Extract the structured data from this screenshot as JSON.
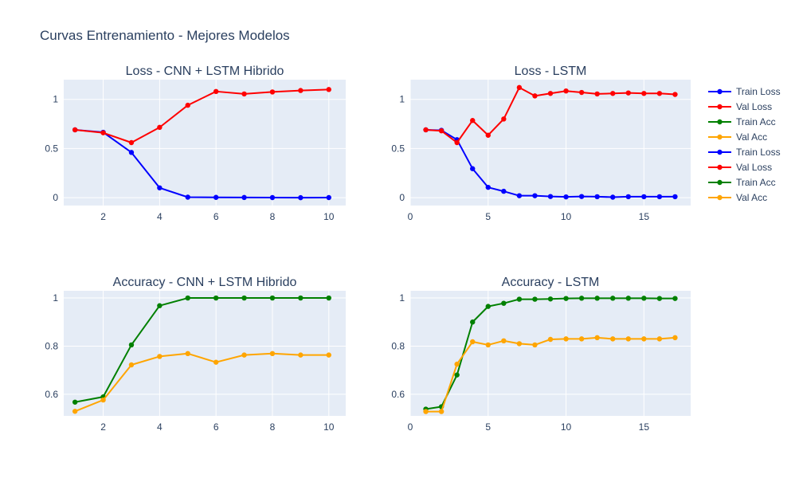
{
  "title": "Curvas Entrenamiento - Mejores Modelos",
  "colors": {
    "plot_bg": "#e5ecf6",
    "text": "#2a3f5f",
    "train_loss": "#0000ff",
    "val_loss": "#ff0000",
    "train_acc": "#008000",
    "val_acc": "#ffa500"
  },
  "legend": {
    "placement": "right",
    "entries": [
      {
        "label": "Train Loss",
        "color": "#0000ff"
      },
      {
        "label": "Val Loss",
        "color": "#ff0000"
      },
      {
        "label": "Train Acc",
        "color": "#008000"
      },
      {
        "label": "Val Acc",
        "color": "#ffa500"
      },
      {
        "label": "Train Loss",
        "color": "#0000ff"
      },
      {
        "label": "Val Loss",
        "color": "#ff0000"
      },
      {
        "label": "Train Acc",
        "color": "#008000"
      },
      {
        "label": "Val Acc",
        "color": "#ffa500"
      }
    ]
  },
  "chart_data": [
    {
      "type": "line",
      "title": "Loss - CNN + LSTM Hibrido",
      "xlim": [
        0.6,
        10.6
      ],
      "ylim": [
        -0.08,
        1.2
      ],
      "xticks": [
        2,
        4,
        6,
        8,
        10
      ],
      "yticks": [
        0,
        0.5,
        1
      ],
      "grid": true,
      "series": [
        {
          "name": "Train Loss",
          "color": "#0000ff",
          "x": [
            1,
            2,
            3,
            4,
            5,
            6,
            7,
            8,
            9,
            10
          ],
          "y": [
            0.69,
            0.665,
            0.46,
            0.1,
            0.005,
            0.003,
            0.002,
            0.001,
            0.0,
            0.001
          ]
        },
        {
          "name": "Val Loss",
          "color": "#ff0000",
          "x": [
            1,
            2,
            3,
            4,
            5,
            6,
            7,
            8,
            9,
            10
          ],
          "y": [
            0.69,
            0.66,
            0.56,
            0.715,
            0.94,
            1.08,
            1.055,
            1.075,
            1.09,
            1.1
          ]
        }
      ]
    },
    {
      "type": "line",
      "title": "Loss - LSTM",
      "xlim": [
        0,
        18
      ],
      "ylim": [
        -0.08,
        1.2
      ],
      "xticks": [
        0,
        5,
        10,
        15
      ],
      "yticks": [
        0,
        0.5,
        1
      ],
      "grid": true,
      "series": [
        {
          "name": "Train Loss",
          "color": "#0000ff",
          "x": [
            1,
            2,
            3,
            4,
            5,
            6,
            7,
            8,
            9,
            10,
            11,
            12,
            13,
            14,
            15,
            16,
            17
          ],
          "y": [
            0.69,
            0.685,
            0.59,
            0.295,
            0.105,
            0.065,
            0.02,
            0.02,
            0.012,
            0.008,
            0.012,
            0.01,
            0.005,
            0.01,
            0.01,
            0.01,
            0.01
          ]
        },
        {
          "name": "Val Loss",
          "color": "#ff0000",
          "x": [
            1,
            2,
            3,
            4,
            5,
            6,
            7,
            8,
            9,
            10,
            11,
            12,
            13,
            14,
            15,
            16,
            17
          ],
          "y": [
            0.69,
            0.68,
            0.56,
            0.785,
            0.635,
            0.8,
            1.12,
            1.035,
            1.06,
            1.085,
            1.07,
            1.055,
            1.06,
            1.065,
            1.06,
            1.06,
            1.05
          ]
        }
      ]
    },
    {
      "type": "line",
      "title": "Accuracy - CNN + LSTM Hibrido",
      "xlim": [
        0.6,
        10.6
      ],
      "ylim": [
        0.51,
        1.03
      ],
      "xticks": [
        2,
        4,
        6,
        8,
        10
      ],
      "yticks": [
        0.6,
        0.8,
        1
      ],
      "grid": true,
      "series": [
        {
          "name": "Train Acc",
          "color": "#008000",
          "x": [
            1,
            2,
            3,
            4,
            5,
            6,
            7,
            8,
            9,
            10
          ],
          "y": [
            0.567,
            0.589,
            0.805,
            0.968,
            1.0,
            1.0,
            1.0,
            1.0,
            1.0,
            1.0
          ]
        },
        {
          "name": "Val Acc",
          "color": "#ffa500",
          "x": [
            1,
            2,
            3,
            4,
            5,
            6,
            7,
            8,
            9,
            10
          ],
          "y": [
            0.529,
            0.576,
            0.722,
            0.757,
            0.769,
            0.733,
            0.763,
            0.769,
            0.763,
            0.763
          ]
        }
      ]
    },
    {
      "type": "line",
      "title": "Accuracy - LSTM",
      "xlim": [
        0,
        18
      ],
      "ylim": [
        0.51,
        1.03
      ],
      "xticks": [
        0,
        5,
        10,
        15
      ],
      "yticks": [
        0.6,
        0.8,
        1
      ],
      "grid": true,
      "series": [
        {
          "name": "Train Acc",
          "color": "#008000",
          "x": [
            1,
            2,
            3,
            4,
            5,
            6,
            7,
            8,
            9,
            10,
            11,
            12,
            13,
            14,
            15,
            16,
            17
          ],
          "y": [
            0.538,
            0.548,
            0.68,
            0.9,
            0.965,
            0.978,
            0.995,
            0.995,
            0.996,
            0.998,
            0.999,
            0.999,
            0.999,
            0.999,
            0.999,
            0.998,
            0.998
          ]
        },
        {
          "name": "Val Acc",
          "color": "#ffa500",
          "x": [
            1,
            2,
            3,
            4,
            5,
            6,
            7,
            8,
            9,
            10,
            11,
            12,
            13,
            14,
            15,
            16,
            17
          ],
          "y": [
            0.528,
            0.528,
            0.725,
            0.818,
            0.805,
            0.822,
            0.81,
            0.805,
            0.828,
            0.83,
            0.83,
            0.835,
            0.83,
            0.83,
            0.83,
            0.83,
            0.835
          ]
        }
      ]
    }
  ]
}
